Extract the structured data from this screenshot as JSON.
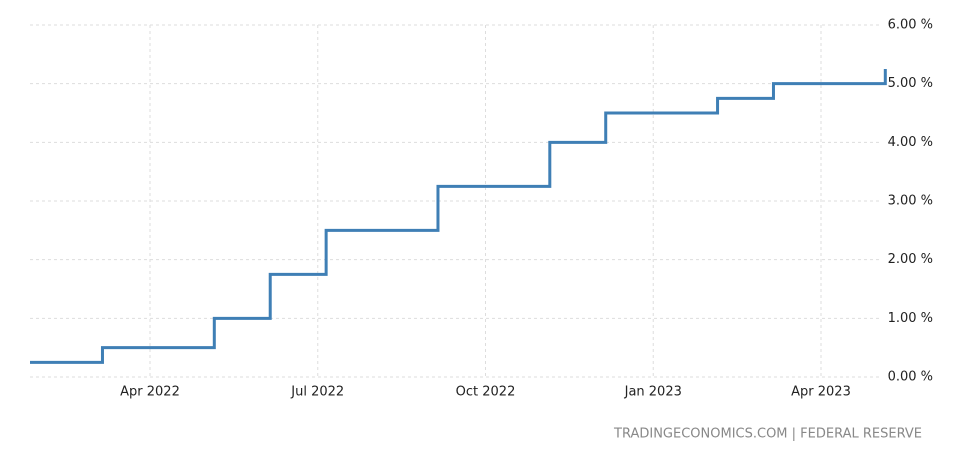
{
  "chart_data": {
    "type": "step",
    "source": "TRADINGECONOMICS.COM | FEDERAL RESERVE",
    "x": [
      "2022-02",
      "2022-03",
      "2022-05",
      "2022-06",
      "2022-07",
      "2022-09",
      "2022-11",
      "2022-12",
      "2023-02",
      "2023-03",
      "2023-05"
    ],
    "values": [
      0.25,
      0.5,
      1.0,
      1.75,
      2.5,
      3.25,
      4.0,
      4.5,
      4.75,
      5.0,
      5.25
    ],
    "color": "#3f7fb5",
    "ylim": [
      0,
      6
    ],
    "yticks": [
      {
        "value": 0,
        "label": "0.00 %"
      },
      {
        "value": 1,
        "label": "1.00 %"
      },
      {
        "value": 2,
        "label": "2.00 %"
      },
      {
        "value": 3,
        "label": "3.00 %"
      },
      {
        "value": 4,
        "label": "4.00 %"
      },
      {
        "value": 5,
        "label": "5.00 %"
      },
      {
        "value": 6,
        "label": "6.00 %"
      }
    ],
    "xticks": [
      {
        "value": "2022-04",
        "label": "Apr 2022"
      },
      {
        "value": "2022-07",
        "label": "Jul 2022"
      },
      {
        "value": "2022-10",
        "label": "Oct 2022"
      },
      {
        "value": "2023-01",
        "label": "Jan 2023"
      },
      {
        "value": "2023-04",
        "label": "Apr 2023"
      }
    ],
    "grid": true
  }
}
